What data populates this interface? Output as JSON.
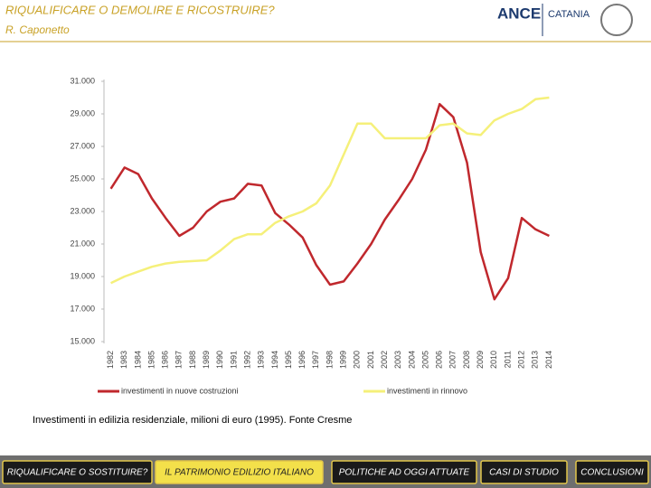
{
  "header": {
    "title": "RIQUALIFICARE O DEMOLIRE E RICOSTRUIRE?",
    "subtitle": "R. Caponetto",
    "logo": "ANCE",
    "logo_city": "CATANIA"
  },
  "chart_data": {
    "type": "line",
    "caption": "Investimenti in edilizia residenziale, milioni di euro (1995). Fonte Cresme",
    "categories": [
      "1982",
      "1983",
      "1984",
      "1985",
      "1986",
      "1987",
      "1988",
      "1989",
      "1990",
      "1991",
      "1992",
      "1993",
      "1994",
      "1995",
      "1996",
      "1997",
      "1998",
      "1999",
      "2000",
      "2001",
      "2002",
      "2003",
      "2004",
      "2005",
      "2006",
      "2007",
      "2008",
      "2009",
      "2010",
      "2011",
      "2012",
      "2013",
      "2014"
    ],
    "series": [
      {
        "name": "investimenti in nuove costruzioni",
        "color": "#c0282d",
        "values": [
          24400,
          25700,
          25300,
          23800,
          22600,
          21500,
          22000,
          23000,
          23600,
          23800,
          24700,
          24600,
          22900,
          22200,
          21400,
          19700,
          18500,
          18700,
          19800,
          21000,
          22500,
          23700,
          25000,
          26800,
          29600,
          28800,
          26000,
          20500,
          17600,
          18900,
          22600,
          21900,
          21500
        ]
      },
      {
        "name": "investimenti in rinnovo",
        "color": "#f5f07a",
        "values": [
          18600,
          19000,
          19300,
          19600,
          19800,
          19900,
          19950,
          20000,
          20600,
          21300,
          21600,
          21600,
          22300,
          22700,
          23000,
          23500,
          24600,
          26500,
          28400,
          28400,
          27500,
          27500,
          27500,
          27500,
          28300,
          28400,
          27800,
          27700,
          28600,
          29000,
          29300,
          29900,
          30000
        ]
      }
    ],
    "ylim": [
      15000,
      31000
    ],
    "yticks": [
      {
        "value": 15000,
        "label": "15.000"
      },
      {
        "value": 17000,
        "label": "17.000"
      },
      {
        "value": 19000,
        "label": "19.000"
      },
      {
        "value": 21000,
        "label": "21.000"
      },
      {
        "value": 23000,
        "label": "23.000"
      },
      {
        "value": 25000,
        "label": "25.000"
      },
      {
        "value": 27000,
        "label": "27.000"
      },
      {
        "value": 29000,
        "label": "29.000"
      },
      {
        "value": 31000,
        "label": "31.000"
      }
    ],
    "grid": false
  },
  "footer": {
    "tabs": [
      "RIQUALIFICARE O SOSTITUIRE?",
      "IL PATRIMONIO EDILIZIO ITALIANO",
      "POLITICHE AD OGGI ATTUATE",
      "CASI DI STUDIO",
      "CONCLUSIONI"
    ],
    "active": 1
  }
}
